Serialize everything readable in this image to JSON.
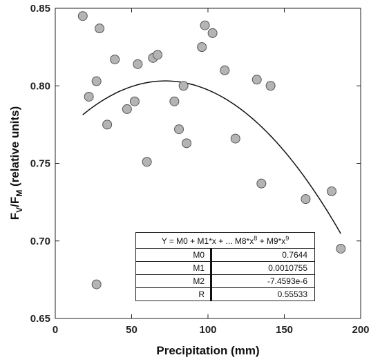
{
  "chart_data": {
    "type": "scatter",
    "xlabel": "Precipitation (mm)",
    "ylabel": "F_V/F_M (relative units)",
    "ylabel_parts": {
      "f1": "F",
      "s1": "V",
      "slash": "/",
      "f2": "F",
      "s2": "M",
      "rest": " (relative units)"
    },
    "xlim": [
      0,
      200
    ],
    "ylim": [
      0.65,
      0.85
    ],
    "xticks": [
      "0",
      "50",
      "100",
      "150",
      "200"
    ],
    "yticks": [
      "0.65",
      "0.70",
      "0.75",
      "0.80",
      "0.85"
    ],
    "grid": false,
    "points": [
      {
        "x": 18,
        "y": 0.845
      },
      {
        "x": 22,
        "y": 0.793
      },
      {
        "x": 27,
        "y": 0.803
      },
      {
        "x": 29,
        "y": 0.837
      },
      {
        "x": 34,
        "y": 0.775
      },
      {
        "x": 39,
        "y": 0.817
      },
      {
        "x": 47,
        "y": 0.785
      },
      {
        "x": 52,
        "y": 0.79
      },
      {
        "x": 54,
        "y": 0.814
      },
      {
        "x": 60,
        "y": 0.751
      },
      {
        "x": 64,
        "y": 0.818
      },
      {
        "x": 67,
        "y": 0.82
      },
      {
        "x": 78,
        "y": 0.79
      },
      {
        "x": 81,
        "y": 0.772
      },
      {
        "x": 84,
        "y": 0.8
      },
      {
        "x": 86,
        "y": 0.763
      },
      {
        "x": 96,
        "y": 0.825
      },
      {
        "x": 98,
        "y": 0.839
      },
      {
        "x": 103,
        "y": 0.834
      },
      {
        "x": 111,
        "y": 0.81
      },
      {
        "x": 118,
        "y": 0.766
      },
      {
        "x": 132,
        "y": 0.804
      },
      {
        "x": 135,
        "y": 0.737
      },
      {
        "x": 141,
        "y": 0.8
      },
      {
        "x": 164,
        "y": 0.727
      },
      {
        "x": 181,
        "y": 0.732
      },
      {
        "x": 187,
        "y": 0.695
      },
      {
        "x": 27,
        "y": 0.672
      }
    ],
    "fit": {
      "equation_parts": {
        "a": "Y = M0 + M1*x + ... M8*x",
        "e1": "8",
        "b": " + M9*x",
        "e2": "9"
      },
      "curve_x_range": [
        18,
        187
      ],
      "params": [
        {
          "name": "M0",
          "value": "0.7644",
          "num": 0.7644
        },
        {
          "name": "M1",
          "value": "0.0010755",
          "num": 0.0010755
        },
        {
          "name": "M2",
          "value": "-7.4593e-6",
          "num": -7.4593e-06
        },
        {
          "name": "R",
          "value": "0.55533",
          "num": 0.55533
        }
      ]
    },
    "colors": {
      "marker_fill": "#b4b4b4",
      "marker_stroke": "#555555",
      "curve": "#111111"
    }
  }
}
